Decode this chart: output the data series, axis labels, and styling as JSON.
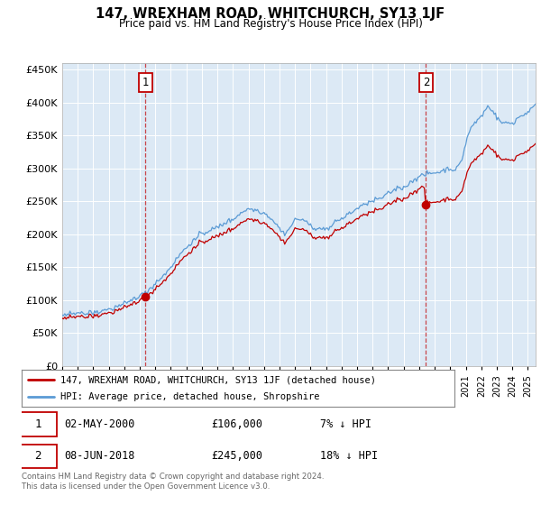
{
  "title": "147, WREXHAM ROAD, WHITCHURCH, SY13 1JF",
  "subtitle": "Price paid vs. HM Land Registry's House Price Index (HPI)",
  "legend_line1": "147, WREXHAM ROAD, WHITCHURCH, SY13 1JF (detached house)",
  "legend_line2": "HPI: Average price, detached house, Shropshire",
  "sale1_date": "02-MAY-2000",
  "sale1_price": "£106,000",
  "sale1_hpi": "7% ↓ HPI",
  "sale2_date": "08-JUN-2018",
  "sale2_price": "£245,000",
  "sale2_hpi": "18% ↓ HPI",
  "footer": "Contains HM Land Registry data © Crown copyright and database right 2024.\nThis data is licensed under the Open Government Licence v3.0.",
  "hpi_color": "#5b9bd5",
  "price_color": "#c00000",
  "marker_color": "#c00000",
  "sale1_year": 2000.37,
  "sale2_year": 2018.44,
  "sale1_price_val": 106000,
  "sale2_price_val": 245000,
  "ylim_min": 0,
  "ylim_max": 460000,
  "background_color": "#ffffff",
  "chart_bg_color": "#dce9f5",
  "grid_color": "#ffffff"
}
